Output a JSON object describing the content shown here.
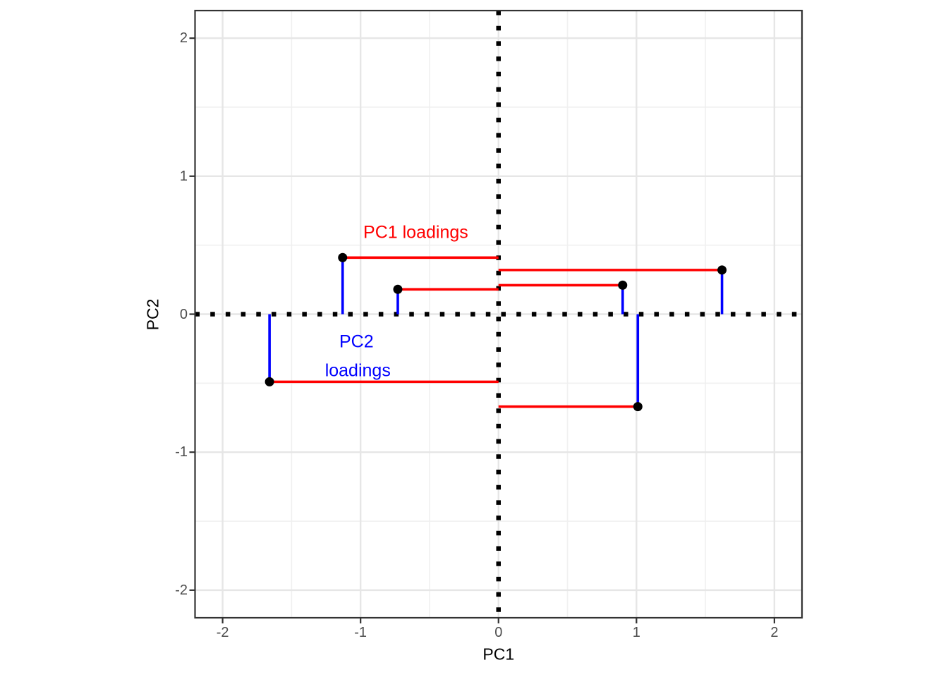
{
  "chart_data": {
    "type": "scatter",
    "title": "",
    "xlabel": "PC1",
    "ylabel": "PC2",
    "xlim": [
      -2.2,
      2.2
    ],
    "ylim": [
      -2.2,
      2.2
    ],
    "x_ticks": [
      -2,
      -1,
      0,
      1,
      2
    ],
    "y_ticks": [
      -2,
      -1,
      0,
      1,
      2
    ],
    "x_tick_labels": [
      "-2",
      "-1",
      "0",
      "1",
      "2"
    ],
    "y_tick_labels": [
      "-2",
      "-1",
      "0",
      "1",
      "2"
    ],
    "minor_gridlines": [
      -1.5,
      -0.5,
      0.5,
      1.5
    ],
    "grid": true,
    "legend": "none",
    "zero_lines": {
      "x": 0,
      "y": 0,
      "style": "dotted"
    },
    "points": [
      {
        "pc1": -1.13,
        "pc2": 0.41
      },
      {
        "pc1": -0.73,
        "pc2": 0.18
      },
      {
        "pc1": 0.9,
        "pc2": 0.21
      },
      {
        "pc1": 1.62,
        "pc2": 0.32
      },
      {
        "pc1": -1.66,
        "pc2": -0.49
      },
      {
        "pc1": 1.01,
        "pc2": -0.67
      }
    ],
    "segments_note": "pc1 loadings = horizontal red segment from x=0 to each point; pc2 loadings = vertical blue segment from y=0 to each point",
    "annotations": [
      {
        "text": "PC1 loadings",
        "x": -0.6,
        "y": 0.59,
        "color": "#FF0000"
      },
      {
        "text": "PC2",
        "x": -1.03,
        "y": -0.2,
        "color": "#0000FF"
      },
      {
        "text": "loadings",
        "x": -1.02,
        "y": -0.41,
        "color": "#0000FF"
      }
    ],
    "colors": {
      "pc1_loading_segment": "#FF0000",
      "pc2_loading_segment": "#0000FF",
      "point": "#000000",
      "zero_line": "#000000",
      "grid_major": "#E6E6E6",
      "grid_minor": "#F0F0F0",
      "panel_border": "#333333",
      "tick_mark": "#333333",
      "tick_label": "#4D4D4D",
      "axis_title": "#000000",
      "background": "#FFFFFF"
    }
  }
}
